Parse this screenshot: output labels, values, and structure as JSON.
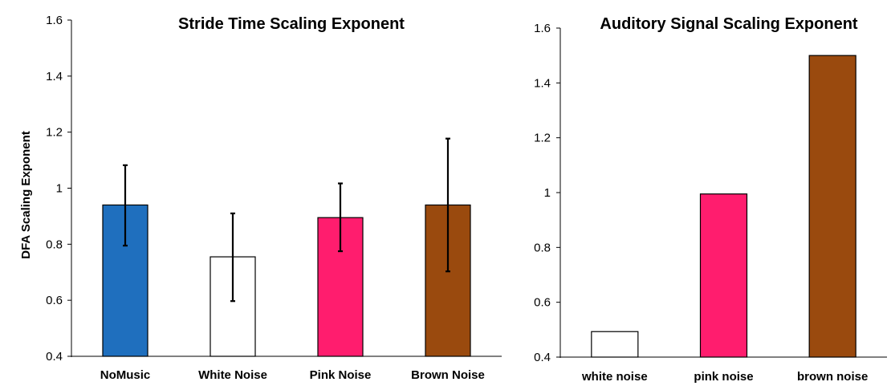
{
  "chart_data": [
    {
      "type": "bar",
      "title": "Stride Time Scaling Exponent",
      "xlabel": "",
      "ylabel": "DFA Scaling  Exponent",
      "ylim": [
        0.4,
        1.6
      ],
      "yticks": [
        "0.4",
        "0.6",
        "0.8",
        "1",
        "1.2",
        "1.4",
        "1.6"
      ],
      "grid": false,
      "categories": [
        "NoMusic",
        "White Noise",
        "Pink Noise",
        "Brown Noise"
      ],
      "values": [
        0.94,
        0.755,
        0.895,
        0.94
      ],
      "error_low": [
        0.795,
        0.597,
        0.775,
        0.703
      ],
      "error_high": [
        1.082,
        0.91,
        1.017,
        1.177
      ],
      "colors": [
        "#1f6fbe",
        "#ffffff",
        "#ff1d6e",
        "#9a4a0e"
      ]
    },
    {
      "type": "bar",
      "title": "Auditory Signal Scaling Exponent",
      "xlabel": "",
      "ylabel": "",
      "ylim": [
        0.4,
        1.6
      ],
      "yticks": [
        "0.4",
        "0.6",
        "0.8",
        "1",
        "1.2",
        "1.4",
        "1.6"
      ],
      "grid": false,
      "categories": [
        "white noise",
        "pink noise",
        "brown noise"
      ],
      "values": [
        0.493,
        0.995,
        1.5
      ],
      "colors": [
        "#ffffff",
        "#ff1d6e",
        "#9a4a0e"
      ]
    }
  ]
}
